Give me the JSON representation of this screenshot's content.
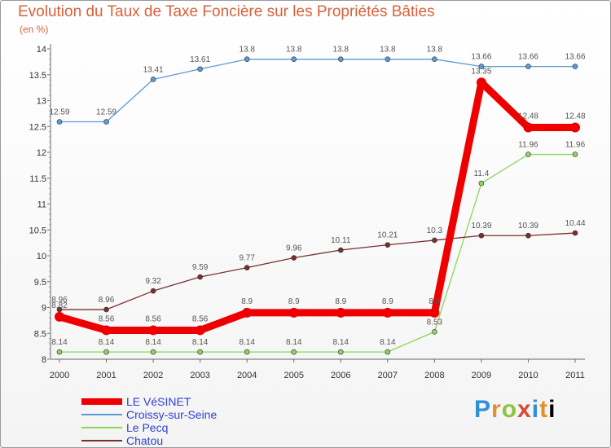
{
  "header": {
    "title": "Evolution du Taux de Taxe Foncière sur les Propriétés Bâties",
    "unit": "(en %)"
  },
  "logo": {
    "text": "Proxiti"
  },
  "chart_data": {
    "type": "line",
    "title": "Evolution du Taux de Taxe Foncière sur les Propriétés Bâties",
    "ylabel": "(en %)",
    "xlabel": "",
    "categories": [
      "2000",
      "2001",
      "2002",
      "2003",
      "2004",
      "2005",
      "2006",
      "2007",
      "2008",
      "2009",
      "2010",
      "2011"
    ],
    "ylim": [
      8,
      14
    ],
    "yticks": [
      8,
      8.5,
      9,
      9.5,
      10,
      10.5,
      11,
      11.5,
      12,
      12.5,
      13,
      13.5,
      14
    ],
    "legend_position": "bottom-left",
    "series": [
      {
        "name": "LE VéSINET",
        "color": "#ee0000",
        "values": [
          8.82,
          8.56,
          8.56,
          8.56,
          8.9,
          8.9,
          8.9,
          8.9,
          8.9,
          13.35,
          12.48,
          12.48
        ],
        "labels": [
          "8.82",
          "8.56",
          "8.56",
          "8.56",
          "8.9",
          "8.9",
          "8.9",
          "8.9",
          "8.9",
          "13.35",
          "12.48",
          "12.48"
        ]
      },
      {
        "name": "Croissy-sur-Seine",
        "color": "#5b9bd5",
        "values": [
          12.59,
          12.59,
          13.41,
          13.61,
          13.8,
          13.8,
          13.8,
          13.8,
          13.8,
          13.66,
          13.66,
          13.66
        ],
        "labels": [
          "12.59",
          "12.59",
          "13.41",
          "13.61",
          "13.8",
          "13.8",
          "13.8",
          "13.8",
          "13.8",
          "13.66",
          "13.66",
          "13.66"
        ]
      },
      {
        "name": "Le Pecq",
        "color": "#8cd65a",
        "values": [
          8.14,
          8.14,
          8.14,
          8.14,
          8.14,
          8.14,
          8.14,
          8.14,
          8.53,
          11.4,
          11.96,
          11.96
        ],
        "labels": [
          "8.14",
          "8.14",
          "8.14",
          "8.14",
          "8.14",
          "8.14",
          "8.14",
          "8.14",
          "8.53",
          "11.4",
          "11.96",
          "11.96"
        ]
      },
      {
        "name": "Chatou",
        "color": "#7a2f2f",
        "values": [
          8.96,
          8.96,
          9.32,
          9.59,
          9.77,
          9.96,
          10.11,
          10.21,
          10.3,
          10.39,
          10.39,
          10.44
        ],
        "labels": [
          "8.96",
          "8.96",
          "9.32",
          "9.59",
          "9.77",
          "9.96",
          "10.11",
          "10.21",
          "10.3",
          "10.39",
          "10.39",
          "10.44"
        ]
      }
    ]
  }
}
